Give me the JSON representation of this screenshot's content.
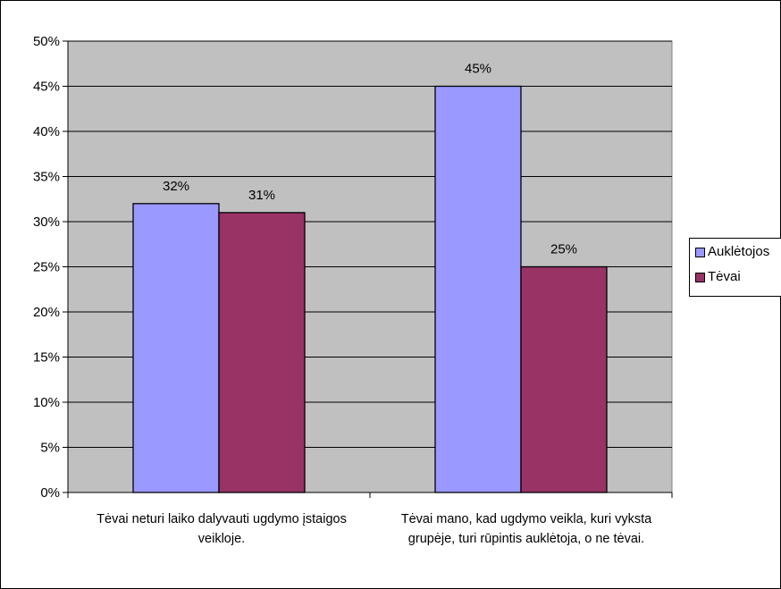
{
  "chart_data": {
    "type": "bar",
    "categories": [
      "Tėvai neturi laiko dalyvauti ugdymo įstaigos veikloje.",
      "Tėvai mano, kad ugdymo veikla, kuri vyksta grupėje, turi rūpintis auklėtoja, o ne tėvai."
    ],
    "series": [
      {
        "name": "Auklėtojos",
        "values": [
          32,
          45
        ],
        "color": "#9999ff",
        "labels": [
          "32%",
          "45%"
        ]
      },
      {
        "name": "Tėvai",
        "values": [
          31,
          25
        ],
        "color": "#993366",
        "labels": [
          "31%",
          "25%"
        ]
      }
    ],
    "ylim": [
      0,
      50
    ],
    "yticks": [
      0,
      5,
      10,
      15,
      20,
      25,
      30,
      35,
      40,
      45,
      50
    ],
    "ytick_labels": [
      "0%",
      "5%",
      "10%",
      "15%",
      "20%",
      "25%",
      "30%",
      "35%",
      "40%",
      "45%",
      "50%"
    ],
    "grid": true,
    "plot_background": "#c0c0c0",
    "legend_position": "right",
    "title": "",
    "xlabel": "",
    "ylabel": ""
  }
}
